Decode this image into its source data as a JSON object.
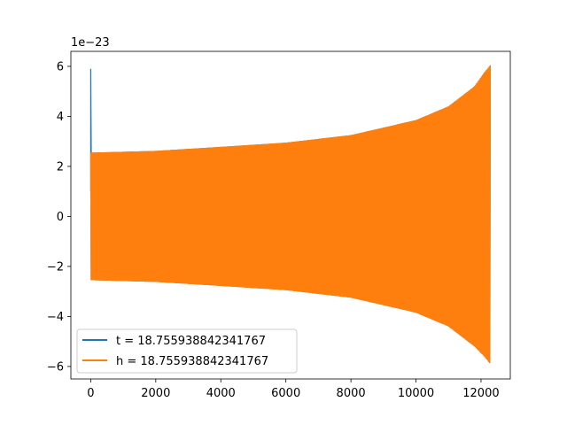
{
  "chart_data": {
    "type": "line",
    "title": "",
    "xlabel": "",
    "ylabel": "",
    "y_offset_text": "1e−23",
    "xlim": [
      -610,
      12900
    ],
    "ylim": [
      -6.5,
      6.6
    ],
    "x_ticks": [
      0,
      2000,
      4000,
      6000,
      8000,
      10000,
      12000
    ],
    "y_ticks": [
      -6,
      -4,
      -2,
      0,
      2,
      4,
      6
    ],
    "x_tick_labels": [
      "0",
      "2000",
      "4000",
      "6000",
      "8000",
      "10000",
      "12000"
    ],
    "y_tick_labels": [
      "−6",
      "−4",
      "−2",
      "0",
      "2",
      "4",
      "6"
    ],
    "legend_position": "lower-left",
    "series": [
      {
        "name": "t = 18.755938842341767",
        "color": "#1f77b4",
        "x_range": [
          0,
          12290
        ],
        "spike_at_x": 0,
        "spike_max": 5.9,
        "envelope": {
          "upper": [
            [
              0,
              2.55
            ],
            [
              2000,
              2.62
            ],
            [
              4000,
              2.78
            ],
            [
              6000,
              2.95
            ],
            [
              8000,
              3.25
            ],
            [
              10000,
              3.85
            ],
            [
              11000,
              4.4
            ],
            [
              11800,
              5.2
            ],
            [
              12100,
              5.75
            ],
            [
              12290,
              6.05
            ]
          ],
          "lower": [
            [
              0,
              -2.55
            ],
            [
              2000,
              -2.62
            ],
            [
              4000,
              -2.78
            ],
            [
              6000,
              -2.95
            ],
            [
              8000,
              -3.25
            ],
            [
              10000,
              -3.85
            ],
            [
              11000,
              -4.4
            ],
            [
              11800,
              -5.2
            ],
            [
              12100,
              -5.6
            ],
            [
              12290,
              -5.9
            ]
          ]
        }
      },
      {
        "name": "h = 18.755938842341767",
        "color": "#ff7f0e",
        "x_range": [
          0,
          12290
        ],
        "envelope": {
          "upper": [
            [
              0,
              2.55
            ],
            [
              2000,
              2.62
            ],
            [
              4000,
              2.78
            ],
            [
              6000,
              2.95
            ],
            [
              8000,
              3.25
            ],
            [
              10000,
              3.85
            ],
            [
              11000,
              4.4
            ],
            [
              11800,
              5.2
            ],
            [
              12100,
              5.75
            ],
            [
              12290,
              6.05
            ]
          ],
          "lower": [
            [
              0,
              -2.55
            ],
            [
              2000,
              -2.62
            ],
            [
              4000,
              -2.78
            ],
            [
              6000,
              -2.95
            ],
            [
              8000,
              -3.25
            ],
            [
              10000,
              -3.85
            ],
            [
              11000,
              -4.4
            ],
            [
              11800,
              -5.2
            ],
            [
              12100,
              -5.6
            ],
            [
              12290,
              -5.9
            ]
          ]
        }
      }
    ]
  }
}
